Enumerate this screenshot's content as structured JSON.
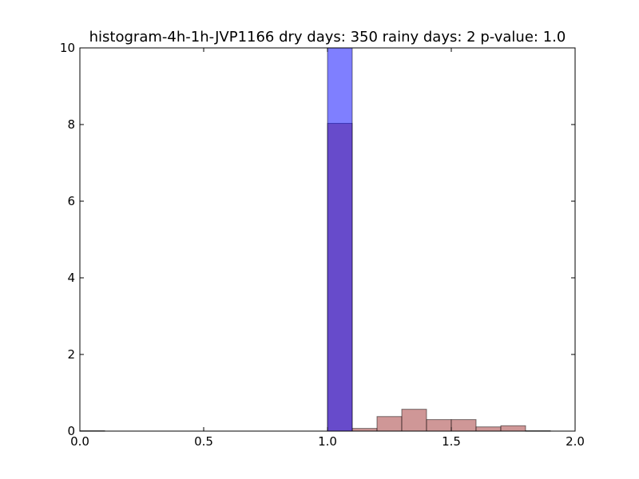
{
  "chart_data": {
    "type": "bar",
    "title": "histogram-4h-1h-JVP1166 dry days: 350 rainy days: 2 p-value: 1.0",
    "xlim": [
      0.0,
      2.0
    ],
    "ylim": [
      0,
      10
    ],
    "x_ticks": [
      "0.0",
      "0.5",
      "1.0",
      "1.5",
      "2.0"
    ],
    "y_ticks": [
      "0",
      "2",
      "4",
      "6",
      "8",
      "10"
    ],
    "grid": false,
    "bin_width": 0.1,
    "series": [
      {
        "color": "#b55f5f",
        "opacity": 0.65,
        "bins": [
          {
            "x": 0.0,
            "value": 0.01
          },
          {
            "x": 1.0,
            "value": 8.03
          },
          {
            "x": 1.1,
            "value": 0.07
          },
          {
            "x": 1.2,
            "value": 0.38
          },
          {
            "x": 1.3,
            "value": 0.57
          },
          {
            "x": 1.4,
            "value": 0.3
          },
          {
            "x": 1.5,
            "value": 0.3
          },
          {
            "x": 1.6,
            "value": 0.11
          },
          {
            "x": 1.7,
            "value": 0.14
          },
          {
            "x": 1.8,
            "value": 0.01
          }
        ]
      },
      {
        "color": "#0000ff",
        "opacity": 0.5,
        "bins": [
          {
            "x": 1.0,
            "value": 10.0
          }
        ]
      }
    ]
  }
}
